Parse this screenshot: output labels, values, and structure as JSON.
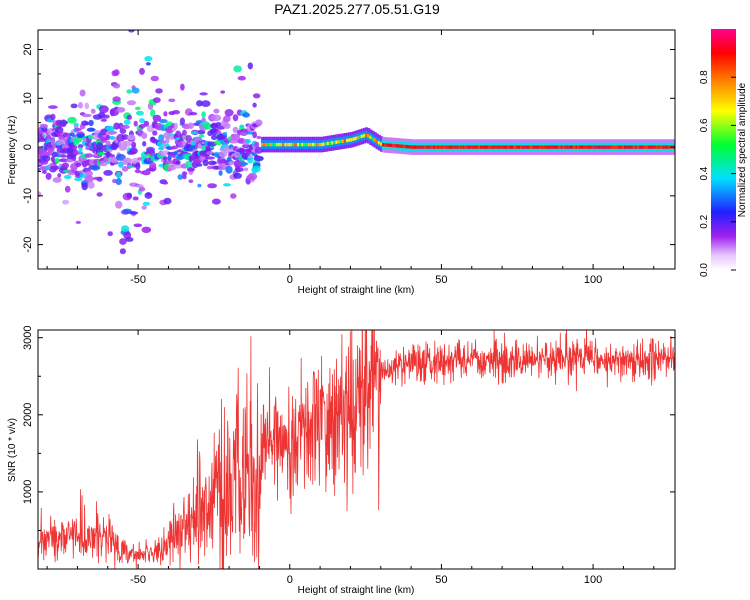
{
  "title": "PAZ1.2025.277.05.51.G19",
  "chart_data": [
    {
      "type": "heatmap",
      "name": "spectrogram",
      "xlabel": "Height of straight line (km)",
      "ylabel": "Frequency (Hz)",
      "xlim": [
        -83,
        127
      ],
      "ylim": [
        -25,
        24
      ],
      "xticks": [
        -50,
        0,
        50,
        100
      ],
      "yticks": [
        -20,
        -10,
        0,
        10,
        20
      ],
      "colorbar": {
        "label": "Normalized spectral amplitude",
        "range": [
          0,
          1
        ],
        "ticks": [
          0.0,
          0.2,
          0.4,
          0.6,
          0.8
        ],
        "colormap": "rainbow (white-purple-blue-cyan-green-yellow-red-magenta)"
      },
      "ridge": {
        "description": "dominant frequency ridge; scattered/noisy below ~-10 km, tight line near 0 Hz above",
        "x": [
          -83,
          -60,
          -50,
          -40,
          -30,
          -20,
          -10,
          0,
          10,
          20,
          25,
          30,
          40,
          50,
          60,
          70,
          80,
          90,
          100,
          110,
          127
        ],
        "freq": [
          0.0,
          0.0,
          -2.0,
          0.0,
          1.0,
          0.0,
          0.5,
          0.5,
          0.5,
          1.5,
          2.5,
          0.5,
          0.0,
          0.0,
          0.0,
          0.0,
          0.0,
          0.0,
          0.0,
          0.0,
          0.0
        ]
      }
    },
    {
      "type": "line",
      "name": "snr",
      "xlabel": "Height of straight line (km)",
      "ylabel": "SNR (10 * v/v)",
      "xlim": [
        -83,
        127
      ],
      "ylim": [
        0,
        3100
      ],
      "xticks": [
        -50,
        0,
        50,
        100
      ],
      "yticks": [
        1000,
        2000,
        3000
      ],
      "color": "#ee3333",
      "envelope": {
        "x": [
          -83,
          -70,
          -60,
          -55,
          -50,
          -45,
          -40,
          -35,
          -30,
          -25,
          -20,
          -15,
          -10,
          -9,
          -5,
          0,
          5,
          10,
          15,
          20,
          25,
          30,
          35,
          40,
          50,
          60,
          70,
          80,
          90,
          100,
          110,
          127
        ],
        "y": [
          350,
          450,
          380,
          250,
          180,
          220,
          350,
          550,
          750,
          900,
          1000,
          1150,
          1100,
          1550,
          1650,
          1700,
          1800,
          1850,
          1950,
          2100,
          2300,
          2500,
          2620,
          2660,
          2700,
          2710,
          2700,
          2710,
          2720,
          2740,
          2700,
          2720
        ]
      }
    }
  ]
}
